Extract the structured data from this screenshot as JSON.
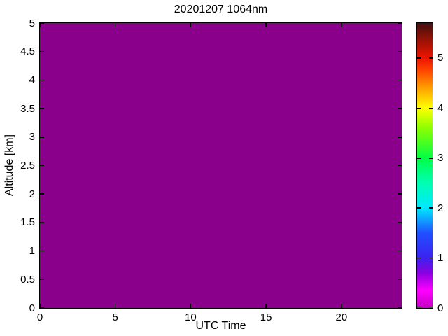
{
  "figure": {
    "background": "#ffffff"
  },
  "chart_data": {
    "type": "heatmap",
    "title": "20201207 1064nm",
    "xlabel": "UTC Time",
    "ylabel": "Altitude [km]",
    "xlim": [
      0,
      24
    ],
    "ylim": [
      0,
      5
    ],
    "xticks": [
      0,
      5,
      10,
      15,
      20
    ],
    "yticks": [
      0,
      0.5,
      1,
      1.5,
      2,
      2.5,
      3,
      3.5,
      4,
      4.5,
      5
    ],
    "grid": false,
    "uniform_value": 0,
    "fill_color": "#8B008B",
    "frame_color": "#000000",
    "colorbar": {
      "position": "right",
      "range": [
        0,
        5.7
      ],
      "ticks": [
        0,
        1,
        2,
        3,
        4,
        5
      ],
      "gradient_stops": [
        {
          "value": 0.0,
          "color": "#C400C4"
        },
        {
          "value": 0.35,
          "color": "#FF00FF"
        },
        {
          "value": 0.7,
          "color": "#8A00E0"
        },
        {
          "value": 1.0,
          "color": "#3C22F0"
        },
        {
          "value": 1.5,
          "color": "#2050FF"
        },
        {
          "value": 2.0,
          "color": "#00E8FF"
        },
        {
          "value": 2.5,
          "color": "#00FFB4"
        },
        {
          "value": 3.0,
          "color": "#00FF45"
        },
        {
          "value": 3.6,
          "color": "#8CFF00"
        },
        {
          "value": 4.0,
          "color": "#FFFF00"
        },
        {
          "value": 4.4,
          "color": "#FFA000"
        },
        {
          "value": 4.75,
          "color": "#FF4600"
        },
        {
          "value": 5.0,
          "color": "#EE1400"
        },
        {
          "value": 5.4,
          "color": "#8E1206"
        },
        {
          "value": 5.7,
          "color": "#421010"
        }
      ]
    }
  }
}
